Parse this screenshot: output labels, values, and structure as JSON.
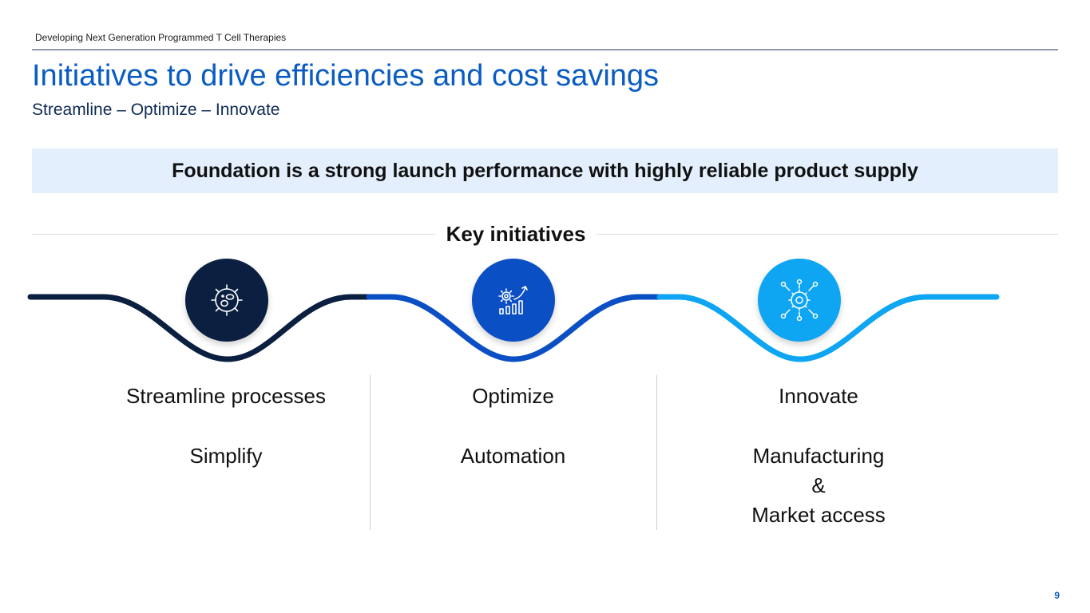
{
  "header": {
    "doc_title": "Developing Next Generation Programmed T Cell Therapies"
  },
  "title": "Initiatives to drive efficiencies and cost savings",
  "subtitle": "Streamline – Optimize – Innovate",
  "banner": "Foundation is a strong launch performance with highly reliable product supply",
  "section_title": "Key initiatives",
  "colors": {
    "navy": "#0b1f40",
    "blue": "#0b4fc4",
    "light_blue": "#0ea5f2",
    "title_blue": "#0a5cc2",
    "banner_bg": "#e3effc"
  },
  "initiatives": [
    {
      "icon": "cell-icon",
      "heading": "Streamline processes",
      "items": [
        "Simplify"
      ]
    },
    {
      "icon": "gear-growth-chart-icon",
      "heading": "Optimize",
      "items": [
        "Automation"
      ]
    },
    {
      "icon": "gear-network-icon",
      "heading": "Innovate",
      "items": [
        "Manufacturing",
        "&",
        "Market access"
      ]
    }
  ],
  "page_number": "9"
}
